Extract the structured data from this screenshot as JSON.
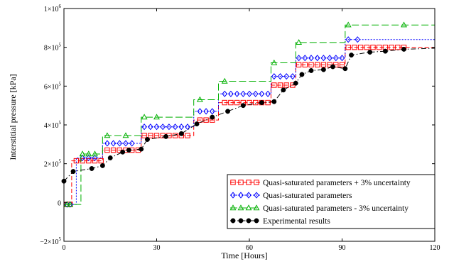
{
  "chart_data": {
    "type": "line",
    "title": "",
    "xlabel": "Time [Hours]",
    "ylabel": "Interstitial pressure [kPa]",
    "xlim": [
      0,
      120
    ],
    "ylim": [
      -200000,
      1000000
    ],
    "xticks": [
      0,
      30,
      60,
      90,
      120
    ],
    "xtick_labels": [
      "0",
      "30",
      "60",
      "90",
      "120"
    ],
    "yticks": [
      -200000,
      0,
      200000,
      400000,
      600000,
      800000,
      1000000
    ],
    "ytick_labels": [
      {
        "mantissa": "−2×10",
        "exp": "5"
      },
      {
        "mantissa": "0",
        "exp": ""
      },
      {
        "mantissa": "2×10",
        "exp": "5"
      },
      {
        "mantissa": "4×10",
        "exp": "5"
      },
      {
        "mantissa": "6×10",
        "exp": "5"
      },
      {
        "mantissa": "8×10",
        "exp": "5"
      },
      {
        "mantissa": "1×10",
        "exp": "6"
      }
    ],
    "grid": false,
    "legend_position": "bottom-right",
    "series": [
      {
        "name": "Quasi-saturated parameters + 3% uncertainty",
        "color": "#ff0000",
        "line": "dash",
        "marker": "square",
        "x": [
          0,
          2.5,
          2.5,
          12.5,
          12.5,
          25,
          25,
          42,
          42,
          50,
          50,
          67,
          67,
          75,
          75,
          91,
          91,
          120
        ],
        "y": [
          -10000,
          -10000,
          215000,
          215000,
          270000,
          270000,
          345000,
          345000,
          425000,
          425000,
          515000,
          515000,
          605000,
          605000,
          710000,
          710000,
          800000,
          800000
        ],
        "marker_x": [
          1,
          2,
          4,
          6,
          8,
          10,
          12,
          14,
          16,
          18,
          20,
          22,
          24,
          26,
          28,
          30,
          32,
          34,
          36,
          38,
          40,
          44,
          46,
          48,
          52,
          54,
          56,
          58,
          60,
          62,
          64,
          66,
          68,
          70,
          72,
          74,
          76,
          78,
          80,
          82,
          84,
          86,
          88,
          90,
          92,
          94,
          96,
          98,
          100,
          102,
          104,
          106,
          108,
          110
        ]
      },
      {
        "name": "Quasi-saturated parameters",
        "color": "#0000ff",
        "line": "dot",
        "marker": "diamond",
        "x": [
          0,
          4,
          4,
          12.5,
          12.5,
          25,
          25,
          42,
          42,
          50,
          50,
          67,
          67,
          75,
          75,
          91,
          91,
          120
        ],
        "y": [
          -10000,
          -10000,
          230000,
          230000,
          305000,
          305000,
          390000,
          390000,
          470000,
          470000,
          560000,
          560000,
          650000,
          650000,
          745000,
          745000,
          840000,
          840000
        ],
        "marker_x": [
          1,
          2,
          6,
          8,
          10,
          14,
          16,
          18,
          20,
          22,
          26,
          28,
          30,
          32,
          34,
          36,
          38,
          40,
          44,
          46,
          48,
          52,
          54,
          56,
          58,
          60,
          62,
          64,
          66,
          68,
          70,
          72,
          74,
          76,
          78,
          80,
          82,
          84,
          86,
          88,
          90,
          92,
          95
        ]
      },
      {
        "name": "Quasi-saturated parameters - 3% uncertainty",
        "color": "#00b000",
        "line": "longdash",
        "marker": "triangle",
        "x": [
          0,
          5.5,
          5.5,
          12.5,
          12.5,
          25,
          25,
          42,
          42,
          50,
          50,
          67,
          67,
          75,
          75,
          91,
          91,
          120
        ],
        "y": [
          -10000,
          -10000,
          250000,
          250000,
          345000,
          345000,
          440000,
          440000,
          530000,
          530000,
          625000,
          625000,
          720000,
          720000,
          825000,
          825000,
          915000,
          915000
        ],
        "marker_x": [
          1,
          2,
          6,
          8,
          10,
          14,
          20,
          26,
          30,
          44,
          52,
          68,
          76,
          92,
          110
        ]
      },
      {
        "name": "Experimental results",
        "color": "#000000",
        "line": "dashdot",
        "marker": "circle",
        "x": [
          0,
          3,
          9,
          12.5,
          15,
          19,
          21,
          25,
          27,
          33,
          38,
          43,
          48,
          53,
          58,
          64,
          68,
          71,
          75,
          77,
          80,
          84,
          87,
          91,
          93,
          99,
          104,
          110,
          120
        ],
        "y": [
          110000,
          160000,
          175000,
          190000,
          230000,
          260000,
          270000,
          275000,
          325000,
          340000,
          355000,
          405000,
          440000,
          470000,
          500000,
          515000,
          520000,
          580000,
          615000,
          660000,
          680000,
          685000,
          700000,
          690000,
          760000,
          775000,
          780000,
          790000,
          795000
        ],
        "marker_x": [
          0,
          3,
          9,
          12.5,
          15,
          19,
          21,
          25,
          27,
          33,
          38,
          43,
          48,
          53,
          58,
          64,
          68,
          71,
          75,
          77,
          80,
          84,
          87,
          91,
          93,
          99,
          104,
          110
        ]
      }
    ]
  }
}
